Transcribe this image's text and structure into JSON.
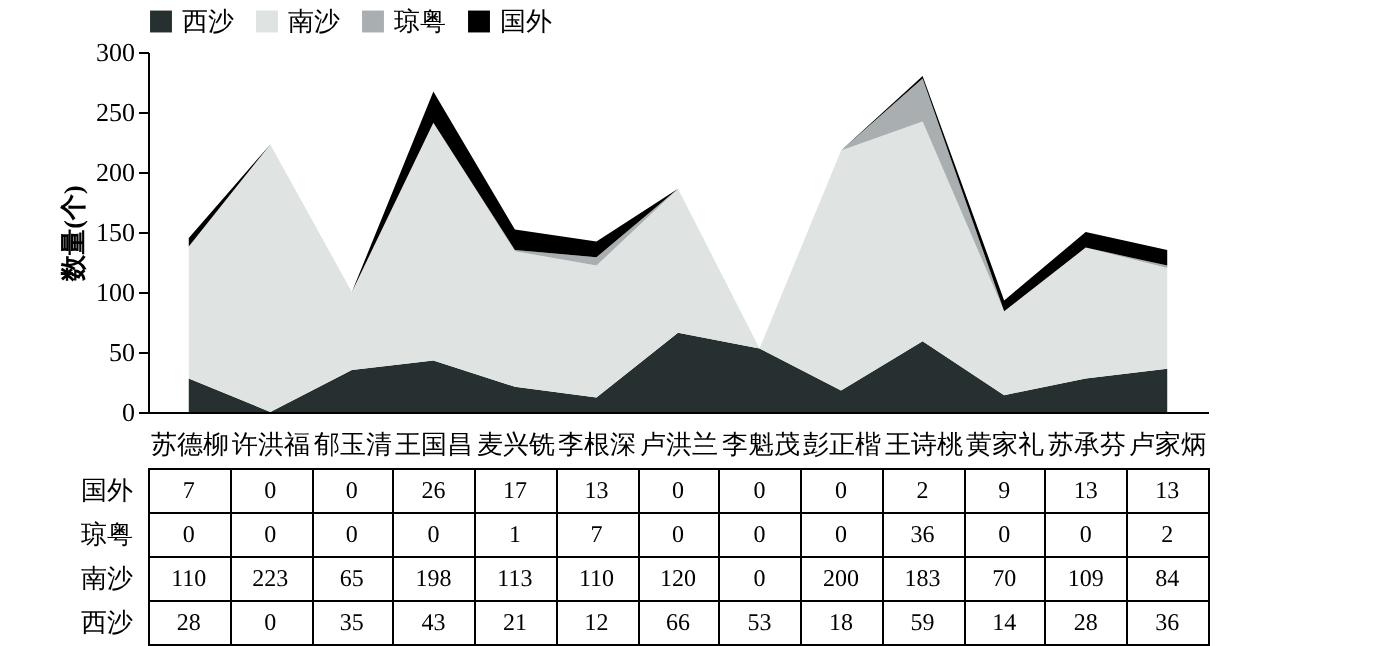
{
  "chart_data": {
    "type": "area",
    "stacked": true,
    "ylabel": "数量(个)",
    "ylim": [
      0,
      300
    ],
    "yticks": [
      0,
      50,
      100,
      150,
      200,
      250,
      300
    ],
    "legend": "top",
    "data_labels": true,
    "categories": [
      "苏德柳",
      "许洪福",
      "郁玉清",
      "王国昌",
      "麦兴铣",
      "李根深",
      "卢洪兰",
      "李魁茂",
      "彭正楷",
      "王诗桃",
      "黄家礼",
      "苏承芬",
      "卢家炳"
    ],
    "series": [
      {
        "name": "西沙",
        "color": "#263030",
        "values": [
          28,
          0,
          35,
          43,
          21,
          12,
          66,
          53,
          18,
          59,
          14,
          28,
          36
        ]
      },
      {
        "name": "南沙",
        "color": "#dfe3e2",
        "values": [
          110,
          223,
          65,
          198,
          113,
          110,
          120,
          0,
          200,
          183,
          70,
          109,
          84
        ]
      },
      {
        "name": "琼粤",
        "color": "#a9afb0",
        "values": [
          0,
          0,
          0,
          0,
          1,
          7,
          0,
          0,
          0,
          36,
          0,
          0,
          2
        ]
      },
      {
        "name": "国外",
        "color": "#000000",
        "values": [
          7,
          0,
          0,
          26,
          17,
          13,
          0,
          0,
          0,
          2,
          9,
          13,
          13
        ]
      }
    ]
  }
}
